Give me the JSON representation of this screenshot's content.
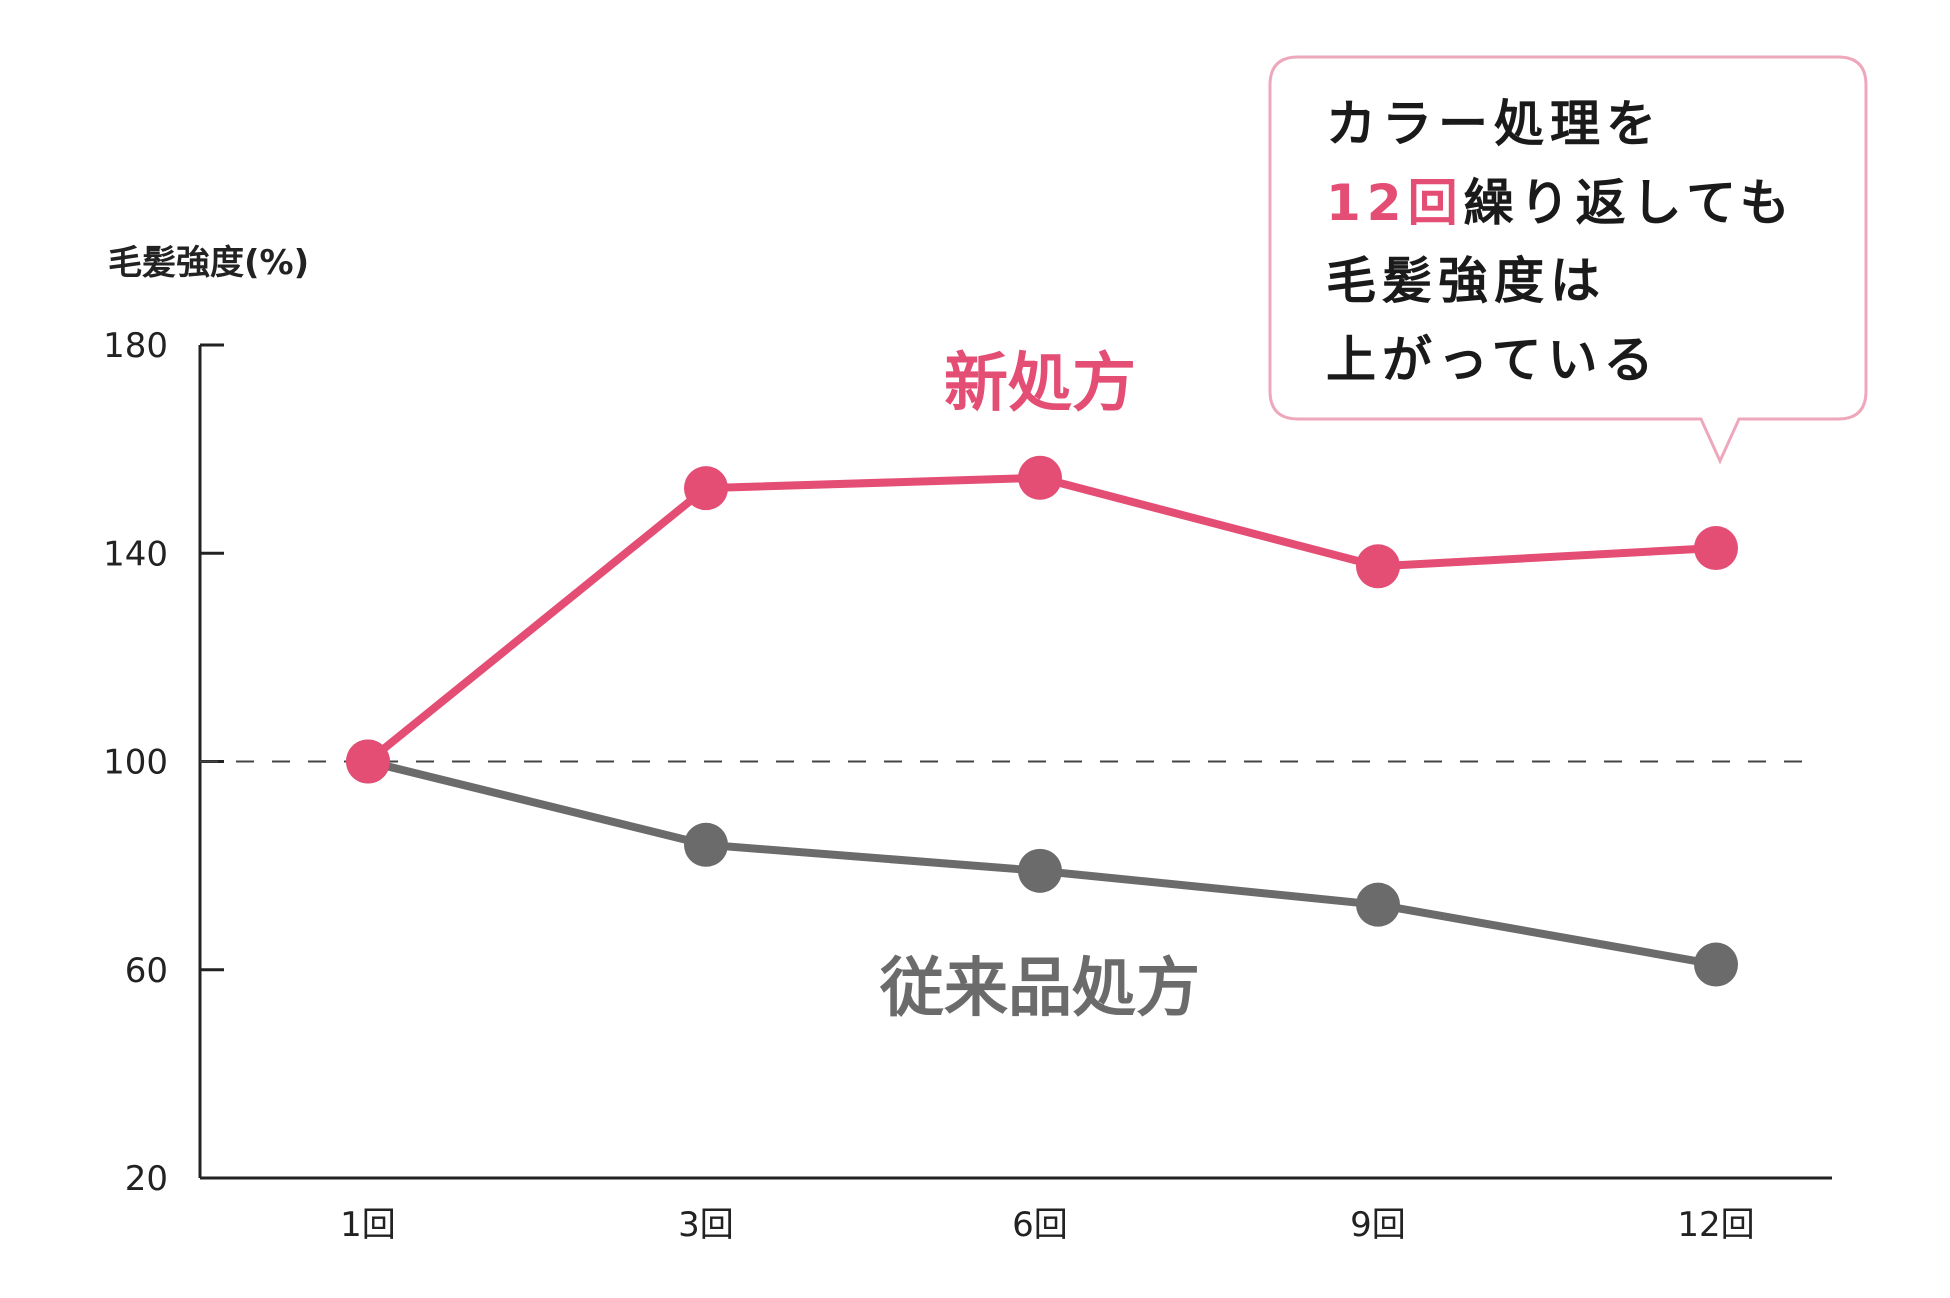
{
  "colors": {
    "new": "#e44d74",
    "old": "#6b6b6b",
    "axis": "#222222",
    "callout_border": "#eea7bb",
    "reference": "#444444"
  },
  "chart_data": {
    "type": "line",
    "ylabel": "毛髪強度(%)",
    "xlabel": "",
    "title": "",
    "categories": [
      "1回",
      "3回",
      "6回",
      "9回",
      "12回"
    ],
    "ylim": [
      20,
      180
    ],
    "yticks": [
      20,
      60,
      100,
      140,
      180
    ],
    "reference_line": 100,
    "grid": false,
    "series": [
      {
        "name": "新処方",
        "values": [
          100,
          152.5,
          154.5,
          137.5,
          141
        ]
      },
      {
        "name": "従来品処方",
        "values": [
          100,
          84,
          79,
          72.5,
          61
        ]
      }
    ],
    "annotation": {
      "lines": [
        [
          {
            "text": "カラー処理を",
            "highlight": false
          }
        ],
        [
          {
            "text": "12回",
            "highlight": true
          },
          {
            "text": "繰り返しても",
            "highlight": false
          }
        ],
        [
          {
            "text": "毛髪強度は",
            "highlight": false
          }
        ],
        [
          {
            "text": "上がっている",
            "highlight": false
          }
        ]
      ]
    }
  }
}
